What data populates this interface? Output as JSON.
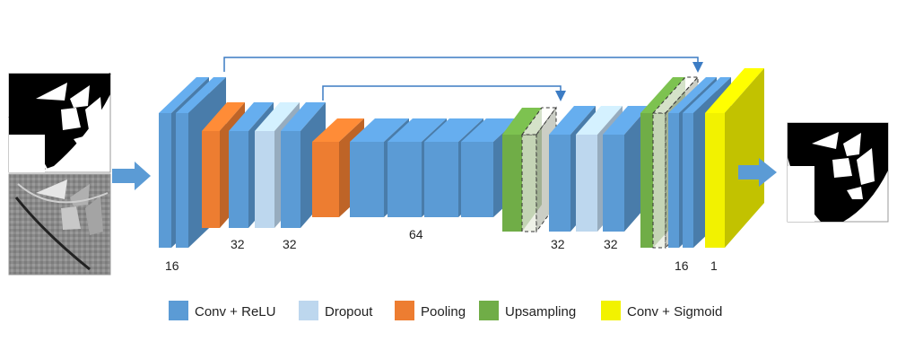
{
  "colors": {
    "conv": "#5b9bd5",
    "dropout": "#bdd7ee",
    "pooling": "#ed7d31",
    "upsampling": "#70ad47",
    "sigmoid": "#f2f200",
    "arrow": "#4a86c8",
    "skip": "#3c7cc4"
  },
  "labels": {
    "l16a": "16",
    "l32a": "32",
    "l32b": "32",
    "l64": "64",
    "l32c": "32",
    "l32d": "32",
    "l16b": "16",
    "l1": "1"
  },
  "legend": {
    "conv": "Conv + ReLU",
    "dropout": "Dropout",
    "pooling": "Pooling",
    "upsampling": "Upsampling",
    "sigmoid": "Conv + Sigmoid"
  },
  "images": {
    "input_top": "binary-input-image",
    "input_bottom": "gradient-input-image",
    "output": "binary-output-image"
  }
}
